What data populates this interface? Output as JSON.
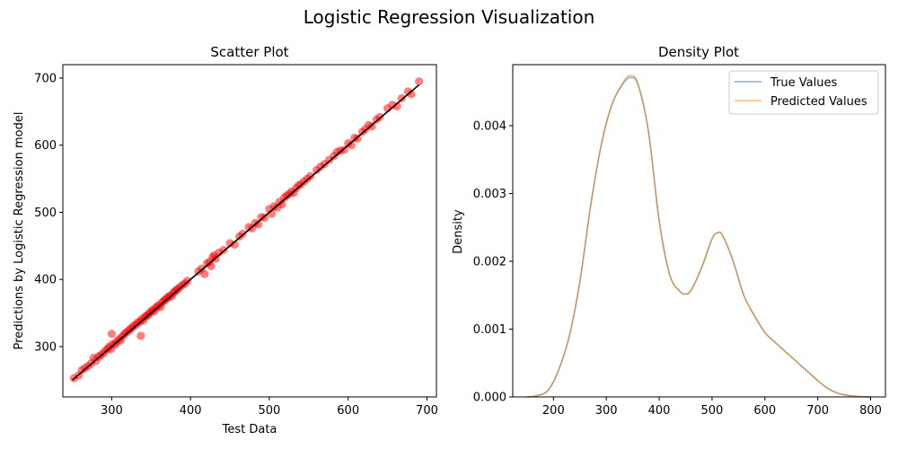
{
  "figure": {
    "title": "Logistic Regression Visualization"
  },
  "chart_data": [
    {
      "type": "scatter",
      "title": "Scatter Plot",
      "xlabel": "Test Data",
      "ylabel": "Predictions by Logistic Regression model",
      "xlim": [
        238,
        712
      ],
      "ylim": [
        225,
        720
      ],
      "xticks": [
        300,
        400,
        500,
        600,
        700
      ],
      "yticks": [
        300,
        400,
        500,
        600,
        700
      ],
      "grid": false,
      "point_color": "#ff0000",
      "line_color": "#000000",
      "fit_line": {
        "x": [
          250,
          690
        ],
        "y": [
          250,
          690
        ]
      },
      "points": [
        [
          252,
          253
        ],
        [
          258,
          257
        ],
        [
          262,
          265
        ],
        [
          266,
          268
        ],
        [
          270,
          271
        ],
        [
          274,
          275
        ],
        [
          277,
          283
        ],
        [
          280,
          279
        ],
        [
          283,
          285
        ],
        [
          286,
          287
        ],
        [
          289,
          290
        ],
        [
          292,
          294
        ],
        [
          295,
          297
        ],
        [
          297,
          300
        ],
        [
          299,
          296
        ],
        [
          300,
          319
        ],
        [
          301,
          304
        ],
        [
          304,
          303
        ],
        [
          306,
          307
        ],
        [
          309,
          311
        ],
        [
          311,
          309
        ],
        [
          313,
          315
        ],
        [
          316,
          318
        ],
        [
          318,
          321
        ],
        [
          321,
          323
        ],
        [
          323,
          326
        ],
        [
          326,
          328
        ],
        [
          328,
          331
        ],
        [
          331,
          333
        ],
        [
          333,
          336
        ],
        [
          336,
          337
        ],
        [
          337,
          316
        ],
        [
          338,
          341
        ],
        [
          340,
          339
        ],
        [
          342,
          344
        ],
        [
          344,
          346
        ],
        [
          346,
          347
        ],
        [
          348,
          350
        ],
        [
          350,
          352
        ],
        [
          352,
          355
        ],
        [
          354,
          353
        ],
        [
          356,
          358
        ],
        [
          358,
          360
        ],
        [
          360,
          362
        ],
        [
          362,
          359
        ],
        [
          364,
          366
        ],
        [
          366,
          368
        ],
        [
          368,
          370
        ],
        [
          370,
          372
        ],
        [
          372,
          374
        ],
        [
          374,
          376
        ],
        [
          376,
          375
        ],
        [
          378,
          380
        ],
        [
          380,
          382
        ],
        [
          382,
          384
        ],
        [
          384,
          386
        ],
        [
          387,
          389
        ],
        [
          390,
          392
        ],
        [
          393,
          394
        ],
        [
          396,
          398
        ],
        [
          410,
          412
        ],
        [
          414,
          416
        ],
        [
          418,
          408
        ],
        [
          421,
          424
        ],
        [
          424,
          426
        ],
        [
          426,
          420
        ],
        [
          428,
          433
        ],
        [
          430,
          436
        ],
        [
          432,
          431
        ],
        [
          436,
          440
        ],
        [
          442,
          444
        ],
        [
          450,
          454
        ],
        [
          456,
          452
        ],
        [
          462,
          464
        ],
        [
          466,
          468
        ],
        [
          474,
          478
        ],
        [
          478,
          476
        ],
        [
          482,
          484
        ],
        [
          486,
          482
        ],
        [
          490,
          493
        ],
        [
          494,
          492
        ],
        [
          500,
          505
        ],
        [
          503,
          498
        ],
        [
          506,
          509
        ],
        [
          510,
          507
        ],
        [
          513,
          516
        ],
        [
          516,
          512
        ],
        [
          519,
          522
        ],
        [
          522,
          525
        ],
        [
          525,
          527
        ],
        [
          528,
          531
        ],
        [
          531,
          529
        ],
        [
          534,
          536
        ],
        [
          537,
          540
        ],
        [
          540,
          542
        ],
        [
          544,
          546
        ],
        [
          548,
          550
        ],
        [
          552,
          554
        ],
        [
          560,
          563
        ],
        [
          565,
          568
        ],
        [
          570,
          572
        ],
        [
          576,
          578
        ],
        [
          582,
          584
        ],
        [
          586,
          590
        ],
        [
          590,
          592
        ],
        [
          595,
          593
        ],
        [
          600,
          603
        ],
        [
          604,
          600
        ],
        [
          608,
          611
        ],
        [
          612,
          610
        ],
        [
          618,
          620
        ],
        [
          622,
          624
        ],
        [
          626,
          630
        ],
        [
          630,
          628
        ],
        [
          636,
          638
        ],
        [
          640,
          642
        ],
        [
          650,
          655
        ],
        [
          656,
          660
        ],
        [
          662,
          658
        ],
        [
          668,
          670
        ],
        [
          676,
          680
        ],
        [
          680,
          676
        ],
        [
          690,
          695
        ]
      ]
    },
    {
      "type": "line",
      "title": "Density Plot",
      "xlabel": "",
      "ylabel": "Density",
      "xlim": [
        123,
        828
      ],
      "ylim": [
        0,
        0.0049
      ],
      "xticks": [
        200,
        300,
        400,
        500,
        600,
        700,
        800
      ],
      "yticks": [
        0.0,
        0.001,
        0.002,
        0.003,
        0.004
      ],
      "ytick_labels": [
        "0.000",
        "0.001",
        "0.002",
        "0.003",
        "0.004"
      ],
      "grid": false,
      "legend_position": "top-right",
      "series": [
        {
          "name": "True Values",
          "color": "#1f77b4",
          "x": [
            150,
            170,
            190,
            210,
            230,
            250,
            270,
            290,
            310,
            330,
            345,
            360,
            380,
            400,
            420,
            440,
            450,
            460,
            480,
            500,
            510,
            520,
            540,
            560,
            580,
            600,
            620,
            640,
            660,
            680,
            700,
            720,
            740,
            760,
            780,
            800
          ],
          "y": [
            0.0,
            2e-05,
            0.0001,
            0.0004,
            0.0009,
            0.0017,
            0.0028,
            0.0037,
            0.0043,
            0.0046,
            0.00471,
            0.0046,
            0.0039,
            0.0026,
            0.0018,
            0.00155,
            0.00152,
            0.00157,
            0.0019,
            0.00233,
            0.00242,
            0.00238,
            0.002,
            0.0015,
            0.0012,
            0.00095,
            0.0008,
            0.00066,
            0.00052,
            0.00038,
            0.00024,
            0.00012,
            5e-05,
            2e-05,
            5e-06,
            0.0
          ]
        },
        {
          "name": "Predicted Values",
          "color": "#ff7f0e",
          "x": [
            150,
            170,
            190,
            210,
            230,
            250,
            270,
            290,
            310,
            330,
            345,
            360,
            380,
            400,
            420,
            440,
            450,
            460,
            480,
            500,
            510,
            520,
            540,
            560,
            580,
            600,
            620,
            640,
            660,
            680,
            700,
            720,
            740,
            760,
            780,
            800
          ],
          "y": [
            0.0,
            2e-05,
            0.0001,
            0.0004,
            0.0009,
            0.0017,
            0.0028,
            0.0037,
            0.0043,
            0.00462,
            0.00474,
            0.00462,
            0.0039,
            0.0026,
            0.0018,
            0.00155,
            0.00152,
            0.00157,
            0.0019,
            0.00233,
            0.00242,
            0.00238,
            0.002,
            0.0015,
            0.0012,
            0.00095,
            0.0008,
            0.00066,
            0.00052,
            0.00038,
            0.00024,
            0.00012,
            5e-05,
            2e-05,
            5e-06,
            0.0
          ]
        }
      ]
    }
  ]
}
